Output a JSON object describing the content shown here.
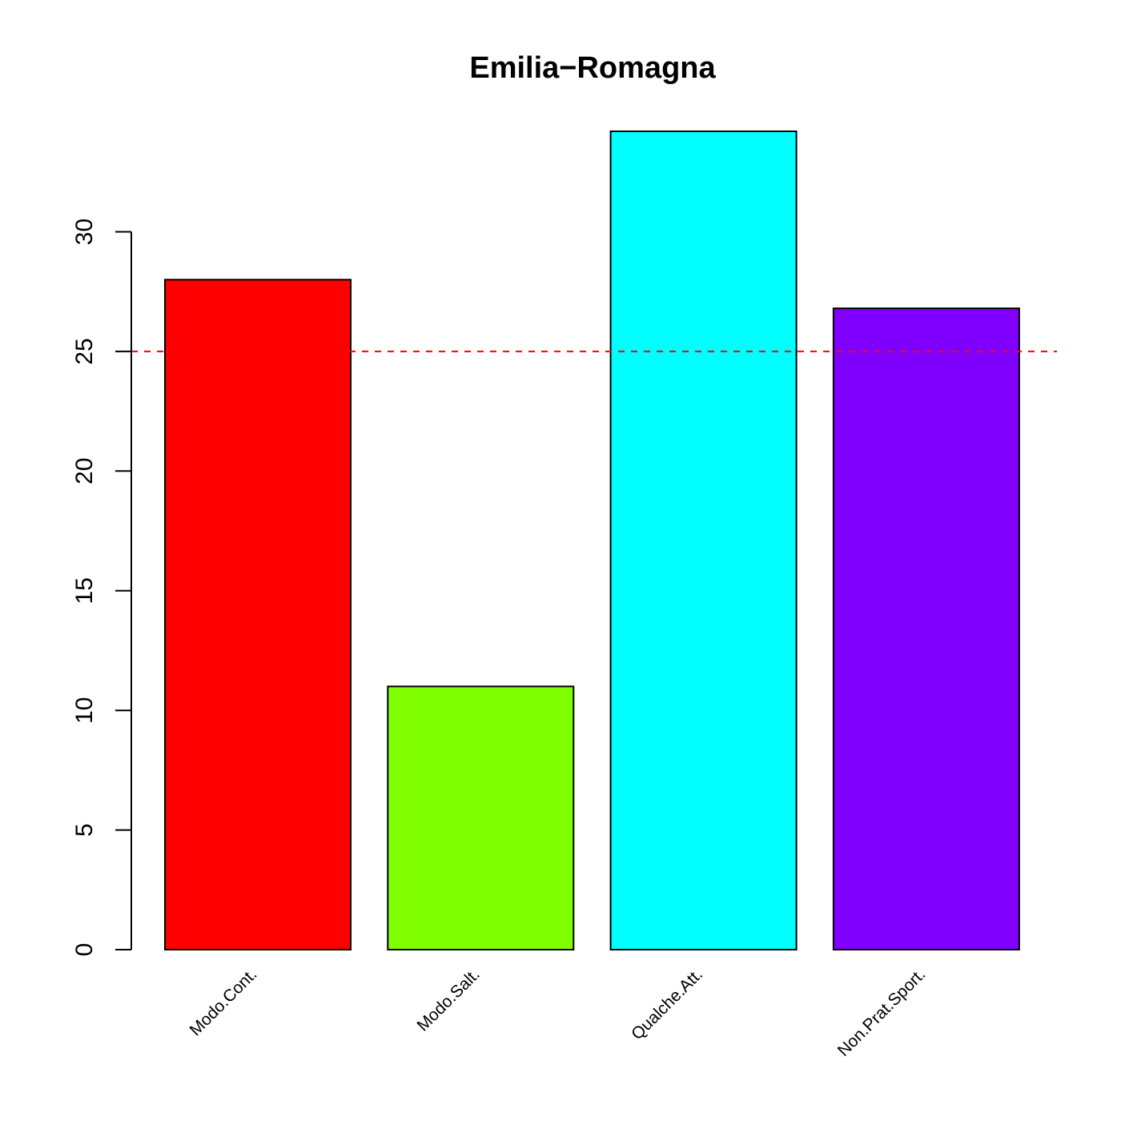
{
  "chart_data": {
    "type": "bar",
    "title": "Emilia−Romagna",
    "xlabel": "",
    "ylabel": "",
    "categories": [
      "Modo.Cont.",
      "Modo.Salt.",
      "Qualche.Att.",
      "Non.Prat.Sport."
    ],
    "values": [
      28.0,
      11.0,
      34.2,
      26.8
    ],
    "colors": [
      "#FF0000",
      "#80FF00",
      "#00FFFF",
      "#8000FF"
    ],
    "yticks": [
      0,
      5,
      10,
      15,
      20,
      25,
      30
    ],
    "ytick_labels": [
      "0",
      "5",
      "10",
      "15",
      "20",
      "25",
      "30"
    ],
    "ylim": [
      0,
      34.2
    ],
    "reference_line": {
      "value": 25,
      "color": "#FF0000",
      "style": "dashed"
    },
    "grid": false,
    "legend": "none"
  }
}
